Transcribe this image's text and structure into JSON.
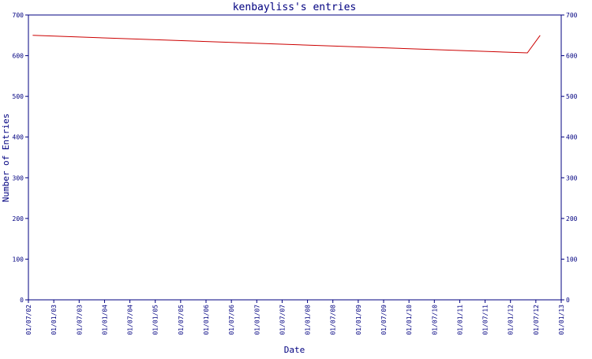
{
  "chart_data": {
    "type": "line",
    "title": "kenbayliss's entries",
    "xlabel": "Date",
    "ylabel": "Number of Entries",
    "ylim": [
      0,
      700
    ],
    "y_ticks": [
      0,
      100,
      200,
      300,
      400,
      500,
      600,
      700
    ],
    "x_ticks": [
      "01/07/02",
      "01/01/03",
      "01/07/03",
      "01/01/04",
      "01/07/04",
      "01/01/05",
      "01/07/05",
      "01/01/06",
      "01/07/06",
      "01/01/07",
      "01/07/07",
      "01/01/08",
      "01/07/08",
      "01/01/09",
      "01/07/09",
      "01/01/10",
      "01/07/10",
      "01/01/11",
      "01/07/11",
      "01/01/12",
      "01/07/12",
      "01/01/13"
    ],
    "grid": false,
    "series": [
      {
        "color": "#cc0000",
        "points": [
          {
            "x": "2002-08-01",
            "y": 650
          },
          {
            "x": "2012-05-01",
            "y": 607
          },
          {
            "x": "2012-08-01",
            "y": 650
          }
        ]
      }
    ],
    "colors": {
      "axis": "#000080",
      "line": "#cc0000",
      "background": "#ffffff"
    }
  }
}
